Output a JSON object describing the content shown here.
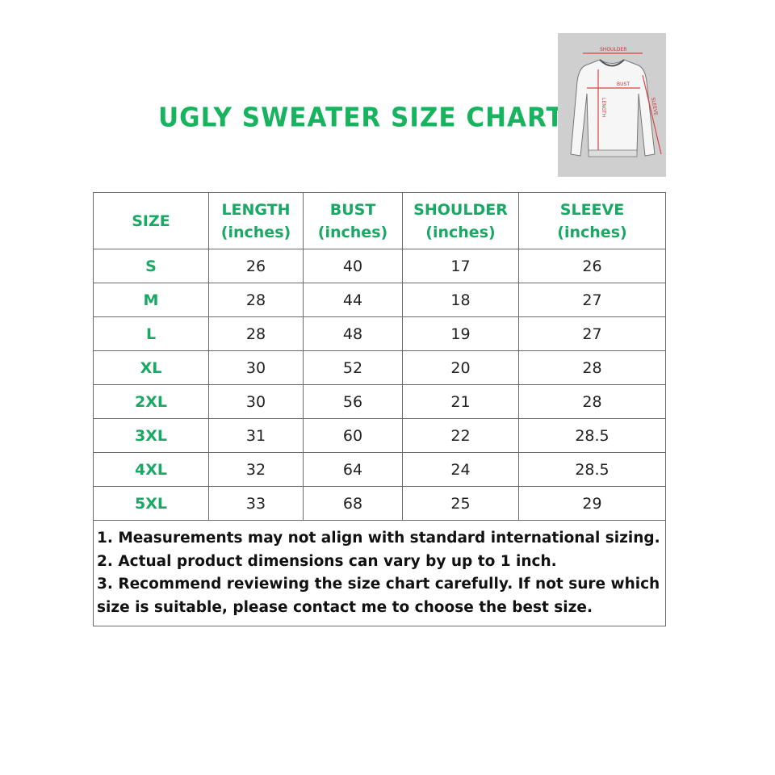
{
  "title": "UGLY SWEATER SIZE CHART",
  "diagram_labels": {
    "shoulder": "SHOULDER",
    "bust": "BUST",
    "length": "LENGTH",
    "sleeve": "SLEEVE"
  },
  "colors": {
    "title": "#17b35e",
    "header": "#1aa865",
    "arrows": "#d94444"
  },
  "table": {
    "headers": [
      {
        "name": "SIZE",
        "unit": ""
      },
      {
        "name": "LENGTH",
        "unit": "(inches)"
      },
      {
        "name": "BUST",
        "unit": "(inches)"
      },
      {
        "name": "SHOULDER",
        "unit": "(inches)"
      },
      {
        "name": "SLEEVE",
        "unit": "(inches)"
      }
    ],
    "rows": [
      [
        "S",
        "26",
        "40",
        "17",
        "26"
      ],
      [
        "M",
        "28",
        "44",
        "18",
        "27"
      ],
      [
        "L",
        "28",
        "48",
        "19",
        "27"
      ],
      [
        "XL",
        "30",
        "52",
        "20",
        "28"
      ],
      [
        "2XL",
        "30",
        "56",
        "21",
        "28"
      ],
      [
        "3XL",
        "31",
        "60",
        "22",
        "28.5"
      ],
      [
        "4XL",
        "32",
        "64",
        "24",
        "28.5"
      ],
      [
        "5XL",
        "33",
        "68",
        "25",
        "29"
      ]
    ]
  },
  "notes": [
    "1. Measurements may not align with standard international sizing.",
    "2. Actual product dimensions can vary by up to 1 inch.",
    "3. Recommend reviewing the size chart carefully. If not sure which size is suitable, please contact me to choose the best size."
  ]
}
